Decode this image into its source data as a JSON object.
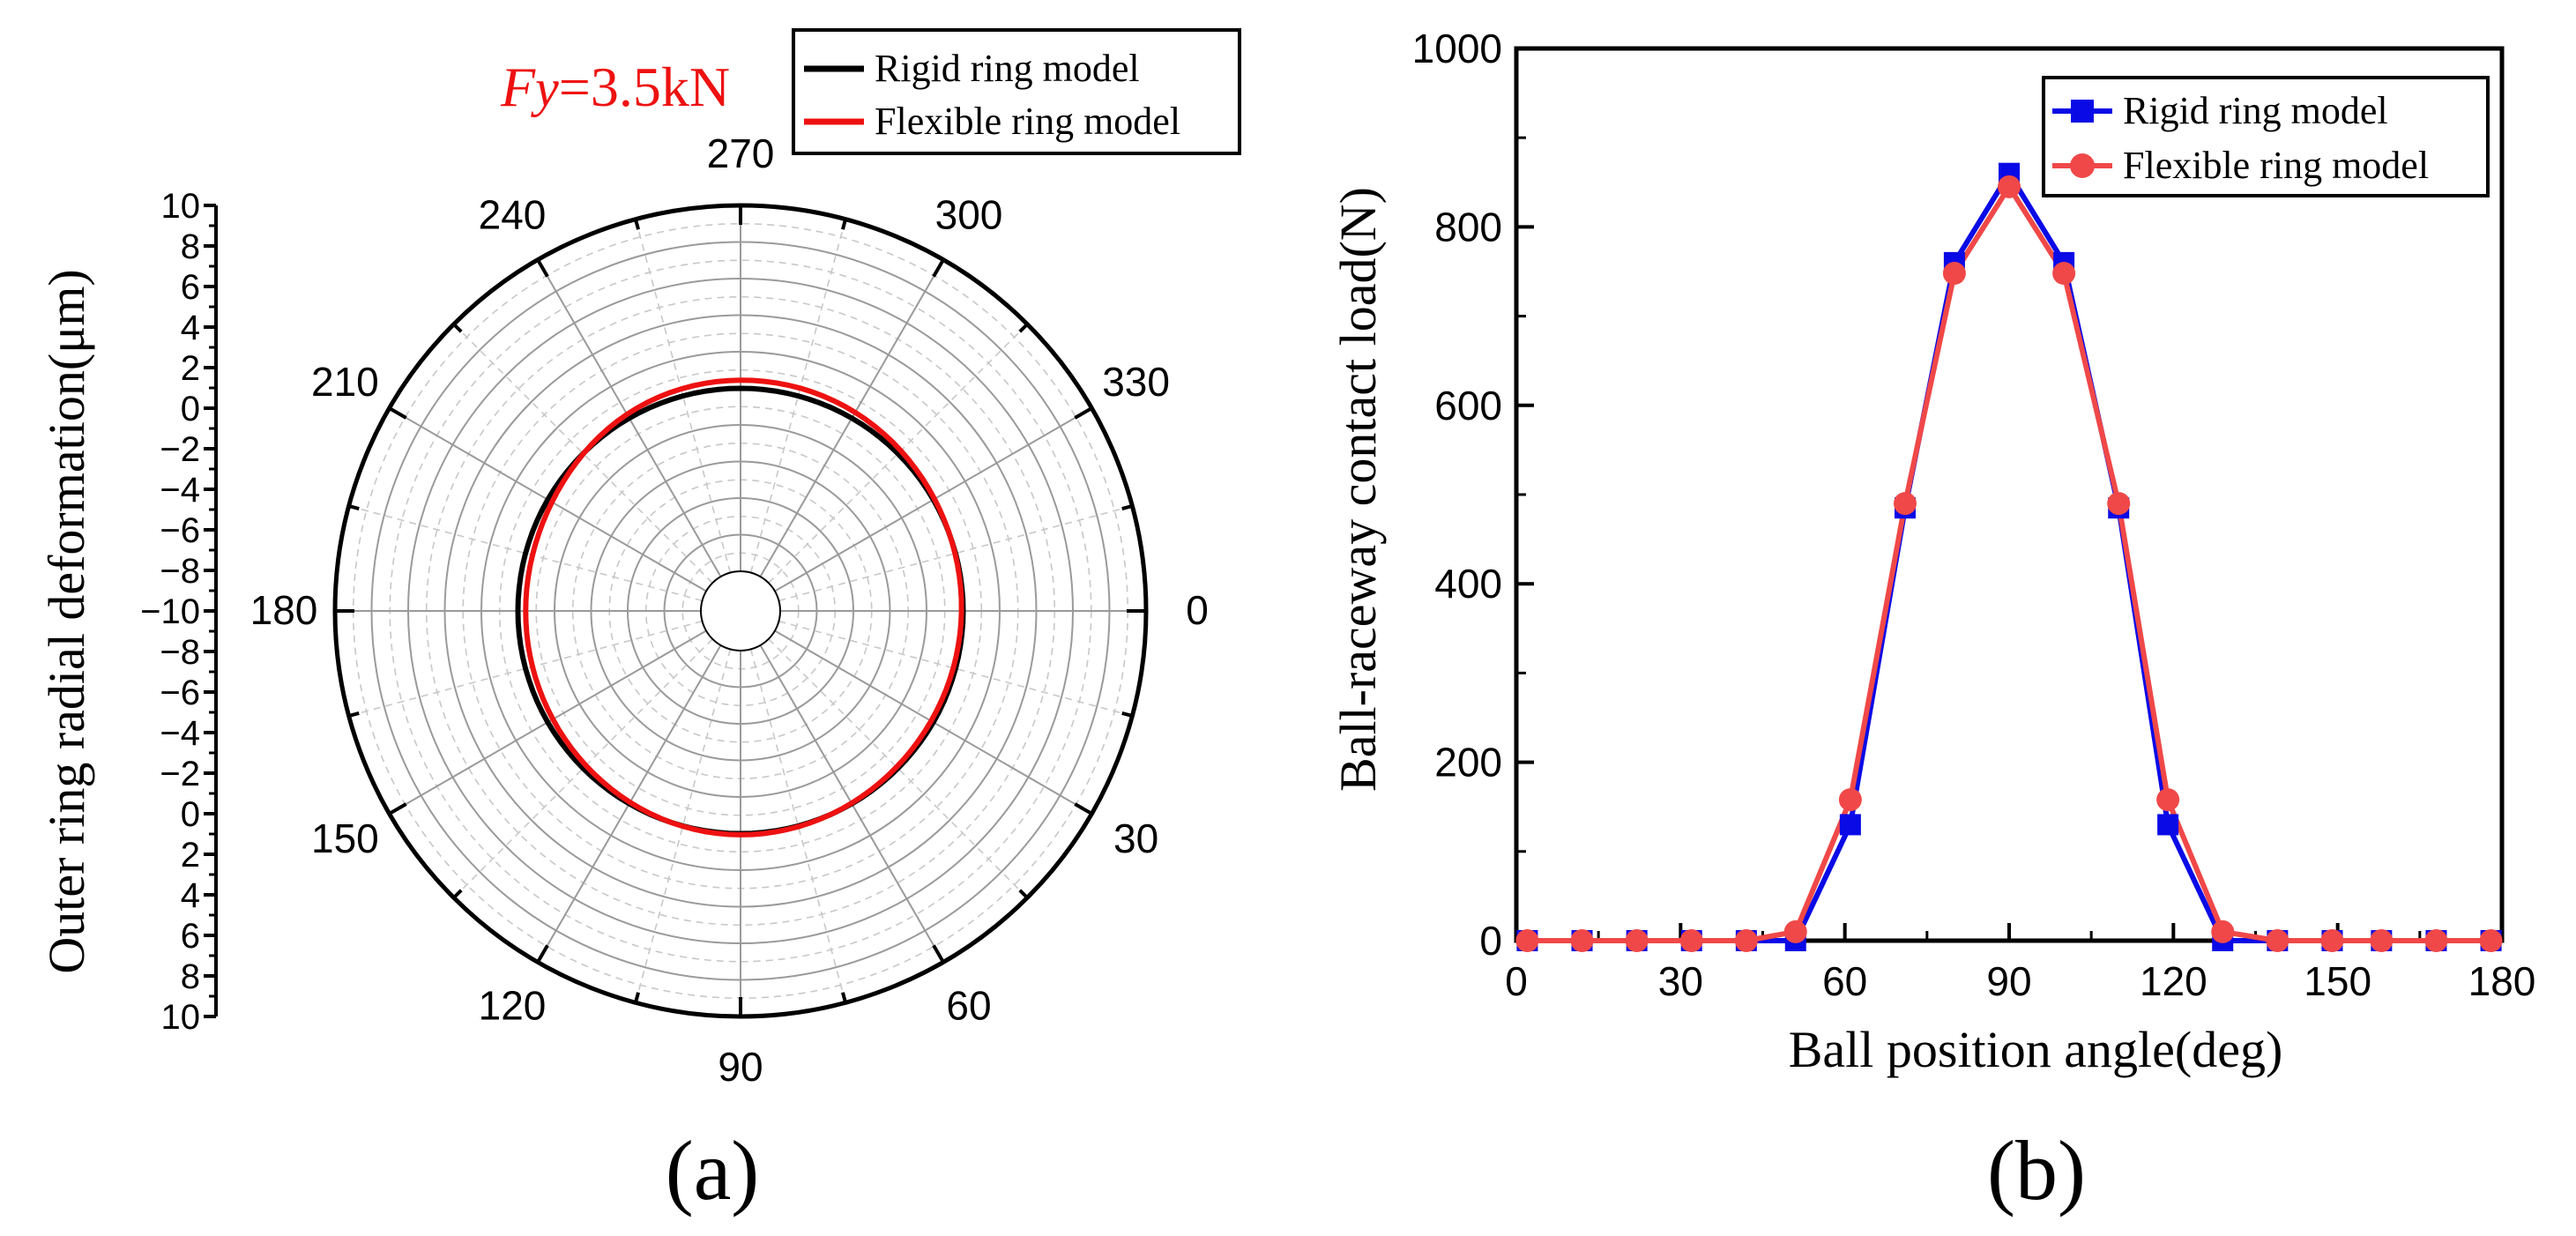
{
  "figure_labels": {
    "a": "(a)",
    "b": "(b)"
  },
  "colors": {
    "rigid_a": "#000000",
    "flexible_a": "#ee1111",
    "rigid_b": "#0a0ae6",
    "flexible_b": "#f04848",
    "annotation": "#ee1111"
  },
  "chart_data": [
    {
      "type": "polar-line",
      "panel": "a",
      "annotation": {
        "var": "F",
        "sub": "y",
        "value": "=3.5kN"
      },
      "radial_axis": {
        "label": "Outer ring radial deformation(μm)",
        "ticks": [
          "10",
          "8",
          "6",
          "4",
          "2",
          "0",
          "−2",
          "−4",
          "−6",
          "−8",
          "−10",
          "−8",
          "−6",
          "−4",
          "−2",
          "0",
          "2",
          "4",
          "6",
          "8",
          "10"
        ],
        "range": [
          -10,
          10
        ]
      },
      "angle_labels": [
        "0",
        "30",
        "60",
        "90",
        "120",
        "150",
        "180",
        "210",
        "240",
        "270",
        "300",
        "330"
      ],
      "legend": {
        "position": "top-right",
        "entries": [
          "Rigid ring model",
          "Flexible ring model"
        ]
      },
      "series": [
        {
          "name": "Rigid ring model",
          "color": "#000000",
          "radial_values": {
            "0": 0,
            "90": 0,
            "180": 0,
            "270": 0
          }
        },
        {
          "name": "Flexible ring model",
          "color": "#ee1111",
          "radial_values": {
            "0": 0,
            "90": 0.5,
            "180": -0.5,
            "270": 0.5,
            "45": -0.4,
            "135": -0.4
          }
        }
      ]
    },
    {
      "type": "line",
      "panel": "b",
      "xlabel": "Ball position angle(deg)",
      "ylabel": "Ball-raceway contact load(N)",
      "xlim": [
        0,
        180
      ],
      "ylim": [
        0,
        1000
      ],
      "xticks": [
        "0",
        "30",
        "60",
        "90",
        "120",
        "150",
        "180"
      ],
      "yticks": [
        "0",
        "200",
        "400",
        "600",
        "800",
        "1000"
      ],
      "legend": {
        "position": "top-right"
      },
      "series": [
        {
          "name": "Rigid ring model",
          "marker": "square",
          "color": "#0a0ae6",
          "x": [
            2,
            12,
            22,
            32,
            42,
            51,
            61,
            71,
            80,
            90,
            100,
            110,
            119,
            129,
            139,
            149,
            158,
            168,
            178
          ],
          "y": [
            0,
            0,
            0,
            0,
            0,
            0,
            130,
            485,
            760,
            860,
            760,
            485,
            130,
            0,
            0,
            0,
            0,
            0,
            0
          ]
        },
        {
          "name": "Flexible ring model",
          "marker": "circle",
          "color": "#f04848",
          "x": [
            2,
            12,
            22,
            32,
            42,
            51,
            61,
            71,
            80,
            90,
            100,
            110,
            119,
            129,
            139,
            149,
            158,
            168,
            178
          ],
          "y": [
            0,
            0,
            0,
            0,
            0,
            10,
            158,
            490,
            748,
            845,
            748,
            490,
            158,
            10,
            0,
            0,
            0,
            0,
            0
          ]
        }
      ]
    }
  ]
}
